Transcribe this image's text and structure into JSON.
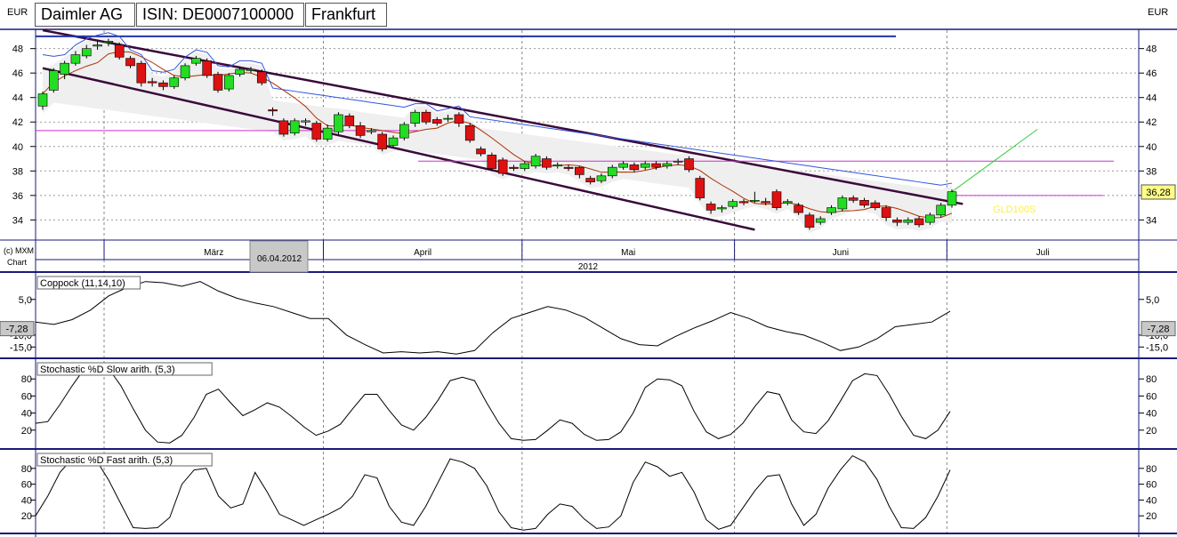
{
  "header": {
    "currency_left": "EUR",
    "currency_right": "EUR",
    "name": "Daimler AG",
    "isin": "ISIN: DE0007100000",
    "exchange": "Frankfurt"
  },
  "footer_label": {
    "line1": "(c) MXM",
    "line2": "Chart"
  },
  "x_axis": {
    "months": [
      "März",
      "April",
      "Mai",
      "Juni",
      "Juli"
    ],
    "year": "2012",
    "highlight_date": "06.04.2012"
  },
  "price_panel": {
    "yticks": [
      "48",
      "46",
      "44",
      "42",
      "40",
      "38",
      "36",
      "34"
    ],
    "last_value": "36,28",
    "ma_label": "GLD100S"
  },
  "panels": [
    {
      "title": "Coppock (11,14,10)",
      "yticks": [
        "5,0",
        "-10,0",
        "-15,0"
      ],
      "value_badge": "-7,28"
    },
    {
      "title": "Stochastic %D Slow arith. (5,3)",
      "yticks": [
        "80",
        "60",
        "40",
        "20"
      ]
    },
    {
      "title": "Stochastic %D Fast arith. (5,3)",
      "yticks": [
        "80",
        "60",
        "40",
        "20"
      ]
    }
  ],
  "colors": {
    "up": "#22dd22",
    "down": "#dd1111",
    "channel": "#3a0a3a",
    "band": "#3355dd",
    "ma": "#aa3300",
    "magenta": "#cc33cc",
    "trend": "#33cc33",
    "fill": "#efefef"
  },
  "chart_data": [
    {
      "type": "candlestick",
      "title": "Daimler AG",
      "ylim": [
        32.5,
        49.5
      ],
      "x_start": "2012-02-20",
      "x_end": "2012-07-30",
      "yticks": [
        34,
        36,
        38,
        40,
        42,
        44,
        46,
        48
      ],
      "candles": [
        [
          43.3,
          44.3,
          43.0,
          44.5
        ],
        [
          44.6,
          46.2,
          44.4,
          46.4
        ],
        [
          45.9,
          46.8,
          45.5,
          47.0
        ],
        [
          46.8,
          47.5,
          46.6,
          47.8
        ],
        [
          47.4,
          48.0,
          47.2,
          48.3
        ],
        [
          48.2,
          48.3,
          47.9,
          48.6
        ],
        [
          48.5,
          48.6,
          48.2,
          48.8
        ],
        [
          48.3,
          47.3,
          47.1,
          48.5
        ],
        [
          47.2,
          46.6,
          46.4,
          47.4
        ],
        [
          46.8,
          45.2,
          44.9,
          47.0
        ],
        [
          45.3,
          45.2,
          44.9,
          45.6
        ],
        [
          45.2,
          44.9,
          44.6,
          45.4
        ],
        [
          44.9,
          45.6,
          44.7,
          45.8
        ],
        [
          45.6,
          46.6,
          45.4,
          46.8
        ],
        [
          46.8,
          47.2,
          46.6,
          47.4
        ],
        [
          47.0,
          45.8,
          45.6,
          47.2
        ],
        [
          45.9,
          44.6,
          44.4,
          46.1
        ],
        [
          44.7,
          45.8,
          44.5,
          46.0
        ],
        [
          45.9,
          46.3,
          45.7,
          46.5
        ],
        [
          46.2,
          46.3,
          46.0,
          46.5
        ],
        [
          46.1,
          45.2,
          45.0,
          46.3
        ],
        [
          43.0,
          42.9,
          42.5,
          43.2
        ],
        [
          42.1,
          41.0,
          40.8,
          42.3
        ],
        [
          41.1,
          42.1,
          40.9,
          42.3
        ],
        [
          42.0,
          42.1,
          41.7,
          42.3
        ],
        [
          41.9,
          40.6,
          40.4,
          42.1
        ],
        [
          40.6,
          41.5,
          40.4,
          41.8
        ],
        [
          41.2,
          42.6,
          41.0,
          42.8
        ],
        [
          42.5,
          41.7,
          41.5,
          42.7
        ],
        [
          41.7,
          40.9,
          40.7,
          42.0
        ],
        [
          41.2,
          41.3,
          41.0,
          41.5
        ],
        [
          41.0,
          39.8,
          39.6,
          41.2
        ],
        [
          40.1,
          40.7,
          39.9,
          40.9
        ],
        [
          40.7,
          41.8,
          40.5,
          42.0
        ],
        [
          41.9,
          42.8,
          41.6,
          43.0
        ],
        [
          42.8,
          42.0,
          41.8,
          43.0
        ],
        [
          42.2,
          41.9,
          41.7,
          42.4
        ],
        [
          42.3,
          42.3,
          42.0,
          42.6
        ],
        [
          42.6,
          41.9,
          41.6,
          42.8
        ],
        [
          41.7,
          40.5,
          40.3,
          41.9
        ],
        [
          39.8,
          39.4,
          39.2,
          40.0
        ],
        [
          39.3,
          38.2,
          38.0,
          39.5
        ],
        [
          38.9,
          37.8,
          37.6,
          39.1
        ],
        [
          38.3,
          38.2,
          38.0,
          38.5
        ],
        [
          38.2,
          38.6,
          38.0,
          38.8
        ],
        [
          38.4,
          39.2,
          38.2,
          39.4
        ],
        [
          39.0,
          38.3,
          38.1,
          39.2
        ],
        [
          38.4,
          38.5,
          38.2,
          38.7
        ],
        [
          38.3,
          38.2,
          38.0,
          38.5
        ],
        [
          38.3,
          37.7,
          37.4,
          38.4
        ],
        [
          37.4,
          37.1,
          36.9,
          37.6
        ],
        [
          37.2,
          37.6,
          37.0,
          37.8
        ],
        [
          37.6,
          38.3,
          37.4,
          38.5
        ],
        [
          38.3,
          38.6,
          38.1,
          38.8
        ],
        [
          38.5,
          38.1,
          37.9,
          38.7
        ],
        [
          38.3,
          38.6,
          38.1,
          38.8
        ],
        [
          38.6,
          38.3,
          38.1,
          38.8
        ],
        [
          38.4,
          38.6,
          38.2,
          38.8
        ],
        [
          38.8,
          38.8,
          38.5,
          39.0
        ],
        [
          39.0,
          38.1,
          37.9,
          39.2
        ],
        [
          37.4,
          35.8,
          35.6,
          37.6
        ],
        [
          35.3,
          34.8,
          34.5,
          35.5
        ],
        [
          34.9,
          35.0,
          34.6,
          35.2
        ],
        [
          35.1,
          35.5,
          34.9,
          35.7
        ],
        [
          35.5,
          35.4,
          35.2,
          35.7
        ],
        [
          35.6,
          35.6,
          35.4,
          36.3
        ],
        [
          35.5,
          35.4,
          35.2,
          35.8
        ],
        [
          36.3,
          35.0,
          34.8,
          36.5
        ],
        [
          35.4,
          35.5,
          35.2,
          35.7
        ],
        [
          35.2,
          34.6,
          34.4,
          35.4
        ],
        [
          34.4,
          33.4,
          33.2,
          34.6
        ],
        [
          33.8,
          34.1,
          33.6,
          34.3
        ],
        [
          34.6,
          35.0,
          34.4,
          35.2
        ],
        [
          34.9,
          35.8,
          34.7,
          36.0
        ],
        [
          35.8,
          35.6,
          35.4,
          36.0
        ],
        [
          35.6,
          35.2,
          35.0,
          35.8
        ],
        [
          35.4,
          35.0,
          34.8,
          35.6
        ],
        [
          35.0,
          34.2,
          33.9,
          35.2
        ],
        [
          34.0,
          33.8,
          33.5,
          34.2
        ],
        [
          33.8,
          34.0,
          33.6,
          34.2
        ],
        [
          34.1,
          33.6,
          33.4,
          34.3
        ],
        [
          33.8,
          34.4,
          33.6,
          34.6
        ],
        [
          34.4,
          35.2,
          34.2,
          35.4
        ],
        [
          35.2,
          36.3,
          35.0,
          36.5
        ]
      ],
      "overlays": {
        "channel_upper": [
          [
            0,
            49.5
          ],
          [
            84,
            35.3
          ]
        ],
        "channel_lower": [
          [
            0,
            46.4
          ],
          [
            65,
            33.2
          ]
        ],
        "bb_upper_hline": 49.0,
        "gap_line": 41.3
      }
    },
    {
      "type": "line",
      "title": "Coppock (11,14,10)",
      "ylim": [
        -19,
        15
      ],
      "values": [
        -4.5,
        -5.5,
        -3.5,
        0.5,
        6.5,
        10,
        12.5,
        12.0,
        10.5,
        12.5,
        8.5,
        5.5,
        3.5,
        2.0,
        -0.5,
        -3.0,
        -3.0,
        -10.0,
        -14.0,
        -17.5,
        -17.0,
        -17.5,
        -17.0,
        -18.0,
        -16.5,
        -9.0,
        -3.0,
        -0.5,
        2.0,
        0.5,
        -2.5,
        -7.0,
        -11.5,
        -14.0,
        -14.5,
        -10.5,
        -7.0,
        -4.0,
        -0.5,
        -3.0,
        -6.5,
        -8.5,
        -10.0,
        -13.0,
        -16.5,
        -15.0,
        -11.5,
        -6.5,
        -5.5,
        -4.5,
        0.0
      ],
      "last": -7.28
    },
    {
      "type": "line",
      "title": "Stochastic %D Slow arith. (5,3)",
      "ylim": [
        0,
        100
      ],
      "values": [
        28,
        30,
        50,
        72,
        92,
        98,
        92,
        72,
        45,
        20,
        6,
        5,
        14,
        35,
        62,
        68,
        52,
        37,
        44,
        52,
        47,
        36,
        24,
        14,
        19,
        27,
        45,
        62,
        62,
        43,
        26,
        20,
        35,
        55,
        78,
        82,
        78,
        52,
        28,
        10,
        8,
        9,
        20,
        32,
        28,
        15,
        8,
        9,
        18,
        40,
        70,
        80,
        79,
        72,
        42,
        18,
        10,
        15,
        28,
        48,
        65,
        62,
        32,
        18,
        16,
        31,
        54,
        78,
        86,
        84,
        62,
        36,
        14,
        10,
        20,
        42
      ]
    },
    {
      "type": "line",
      "title": "Stochastic %D Fast arith. (5,3)",
      "ylim": [
        0,
        100
      ],
      "values": [
        20,
        45,
        75,
        92,
        88,
        90,
        65,
        35,
        5,
        4,
        5,
        18,
        60,
        78,
        80,
        45,
        30,
        35,
        75,
        50,
        22,
        15,
        8,
        15,
        22,
        30,
        45,
        72,
        68,
        32,
        12,
        8,
        32,
        62,
        92,
        88,
        80,
        58,
        25,
        5,
        2,
        4,
        22,
        35,
        32,
        16,
        4,
        6,
        20,
        62,
        88,
        82,
        70,
        75,
        50,
        15,
        3,
        8,
        30,
        52,
        70,
        72,
        35,
        8,
        22,
        55,
        78,
        96,
        88,
        66,
        32,
        5,
        4,
        18,
        45,
        78
      ]
    }
  ]
}
